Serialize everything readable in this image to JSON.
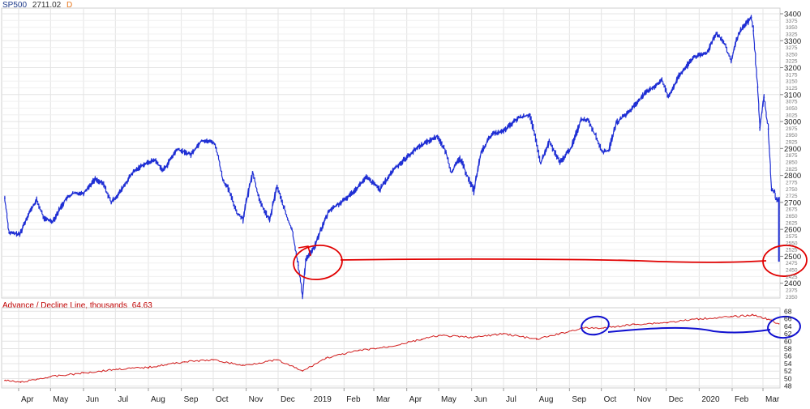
{
  "header": {
    "symbol": "SP500",
    "price": "2711.02",
    "interval": "D"
  },
  "indicator_header": {
    "title": "Advance / Decline Line, thousands",
    "value": "64.63"
  },
  "colors": {
    "price_series": "#1f2fd4",
    "ad_line": "#d21e1e",
    "grid": "#e4e4e4",
    "annotation_red": "#e10000",
    "annotation_blue": "#1010d0",
    "axis_text": "#222222"
  },
  "chart_data": [
    {
      "type": "line",
      "title": "SP500",
      "series": [
        {
          "name": "SP500",
          "x": [
            "2018-03-19",
            "2018-03-23",
            "2018-04-02",
            "2018-04-10",
            "2018-04-18",
            "2018-04-25",
            "2018-05-03",
            "2018-05-15",
            "2018-05-22",
            "2018-06-01",
            "2018-06-12",
            "2018-06-20",
            "2018-06-27",
            "2018-07-05",
            "2018-07-17",
            "2018-07-26",
            "2018-08-07",
            "2018-08-15",
            "2018-08-28",
            "2018-09-10",
            "2018-09-20",
            "2018-10-01",
            "2018-10-04",
            "2018-10-10",
            "2018-10-15",
            "2018-10-24",
            "2018-10-29",
            "2018-11-07",
            "2018-11-14",
            "2018-11-23",
            "2018-11-30",
            "2018-12-05",
            "2018-12-10",
            "2018-12-14",
            "2018-12-20",
            "2018-12-24",
            "2018-12-27",
            "2019-01-04",
            "2019-01-10",
            "2019-01-18",
            "2019-02-01",
            "2019-02-13",
            "2019-02-22",
            "2019-03-07",
            "2019-03-20",
            "2019-04-01",
            "2019-04-12",
            "2019-04-30",
            "2019-05-08",
            "2019-05-13",
            "2019-05-21",
            "2019-06-03",
            "2019-06-10",
            "2019-06-20",
            "2019-07-01",
            "2019-07-15",
            "2019-07-26",
            "2019-08-05",
            "2019-08-13",
            "2019-08-23",
            "2019-09-03",
            "2019-09-12",
            "2019-09-19",
            "2019-10-02",
            "2019-10-08",
            "2019-10-15",
            "2019-10-28",
            "2019-11-08",
            "2019-11-27",
            "2019-12-03",
            "2019-12-13",
            "2019-12-27",
            "2020-01-08",
            "2020-01-17",
            "2020-01-24",
            "2020-01-31",
            "2020-02-07",
            "2020-02-19",
            "2020-02-21",
            "2020-02-25",
            "2020-02-27",
            "2020-03-02",
            "2020-03-06",
            "2020-03-09",
            "2020-03-12",
            "2020-03-13",
            "2020-03-16"
          ],
          "values": [
            2716,
            2588,
            2581,
            2656,
            2708,
            2640,
            2630,
            2711,
            2733,
            2735,
            2787,
            2767,
            2700,
            2736,
            2809,
            2838,
            2858,
            2818,
            2897,
            2878,
            2930,
            2924,
            2901,
            2785,
            2751,
            2657,
            2641,
            2814,
            2701,
            2633,
            2760,
            2700,
            2637,
            2600,
            2467,
            2351,
            2489,
            2532,
            2596,
            2670,
            2707,
            2753,
            2793,
            2749,
            2824,
            2867,
            2907,
            2946,
            2884,
            2812,
            2864,
            2744,
            2886,
            2954,
            2964,
            3014,
            3025,
            2844,
            2926,
            2847,
            2906,
            3009,
            3006,
            2887,
            2893,
            2995,
            3040,
            3093,
            3153,
            3093,
            3168,
            3240,
            3253,
            3330,
            3295,
            3225,
            3327,
            3386,
            3337,
            3128,
            2978,
            3090,
            2972,
            2746,
            2741,
            2711,
            2711
          ]
        }
      ],
      "yticks_major": [
        2400,
        2500,
        2600,
        2700,
        2800,
        2900,
        3000,
        3100,
        3200,
        3300,
        3400
      ],
      "yticks_minor": [
        2350,
        2375,
        2425,
        2450,
        2475,
        2525,
        2550,
        2575,
        2625,
        2650,
        2675,
        2725,
        2750,
        2775,
        2825,
        2850,
        2875,
        2925,
        2950,
        2975,
        3025,
        3050,
        3075,
        3125,
        3150,
        3175,
        3225,
        3250,
        3275,
        3325,
        3350,
        3375
      ],
      "ylim": [
        2345,
        3415
      ],
      "grid": true,
      "xlabel": "",
      "ylabel": ""
    },
    {
      "type": "line",
      "title": "Advance / Decline Line, thousands 64.63",
      "series": [
        {
          "name": "Advance / Decline Line",
          "x": [
            "2018-03-19",
            "2018-04-03",
            "2018-05-01",
            "2018-06-01",
            "2018-07-02",
            "2018-08-01",
            "2018-09-04",
            "2018-10-01",
            "2018-10-29",
            "2018-11-30",
            "2018-12-24",
            "2019-01-15",
            "2019-02-15",
            "2019-03-15",
            "2019-04-15",
            "2019-05-01",
            "2019-06-03",
            "2019-07-01",
            "2019-08-01",
            "2019-08-23",
            "2019-09-13",
            "2019-10-03",
            "2019-11-01",
            "2019-12-02",
            "2020-01-02",
            "2020-01-31",
            "2020-02-20",
            "2020-02-28",
            "2020-03-09",
            "2020-03-16"
          ],
          "values": [
            49.5,
            49.0,
            50.5,
            51.5,
            52.5,
            53.0,
            54.5,
            55.0,
            53.5,
            55.0,
            52.0,
            55.5,
            57.5,
            58.5,
            60.5,
            61.5,
            61.0,
            62.0,
            60.5,
            62.0,
            63.5,
            63.5,
            64.5,
            65.0,
            66.0,
            66.5,
            67.0,
            66.5,
            65.5,
            64.63
          ]
        }
      ],
      "yticks": [
        48,
        50,
        52,
        54,
        56,
        58,
        60,
        62,
        64,
        66,
        68
      ],
      "ylim": [
        47.5,
        68.5
      ],
      "grid": true,
      "xlabel": "",
      "ylabel": ""
    }
  ],
  "x_axis": {
    "labels": [
      {
        "text": "Apr",
        "date": "2018-04-01"
      },
      {
        "text": "May",
        "date": "2018-05-01"
      },
      {
        "text": "Jun",
        "date": "2018-06-01"
      },
      {
        "text": "Jul",
        "date": "2018-07-01"
      },
      {
        "text": "Aug",
        "date": "2018-08-01"
      },
      {
        "text": "Sep",
        "date": "2018-09-01"
      },
      {
        "text": "Oct",
        "date": "2018-10-01"
      },
      {
        "text": "Nov",
        "date": "2018-11-01"
      },
      {
        "text": "Dec",
        "date": "2018-12-01"
      },
      {
        "text": "2019",
        "date": "2019-01-01"
      },
      {
        "text": "Feb",
        "date": "2019-02-01"
      },
      {
        "text": "Mar",
        "date": "2019-03-01"
      },
      {
        "text": "Apr",
        "date": "2019-04-01"
      },
      {
        "text": "May",
        "date": "2019-05-01"
      },
      {
        "text": "Jun",
        "date": "2019-06-01"
      },
      {
        "text": "Jul",
        "date": "2019-07-01"
      },
      {
        "text": "Aug",
        "date": "2019-08-01"
      },
      {
        "text": "Sep",
        "date": "2019-09-01"
      },
      {
        "text": "Oct",
        "date": "2019-10-01"
      },
      {
        "text": "Nov",
        "date": "2019-11-01"
      },
      {
        "text": "Dec",
        "date": "2019-12-01"
      },
      {
        "text": "2020",
        "date": "2020-01-01"
      },
      {
        "text": "Feb",
        "date": "2020-02-01"
      },
      {
        "text": "Mar",
        "date": "2020-03-01"
      }
    ]
  }
}
